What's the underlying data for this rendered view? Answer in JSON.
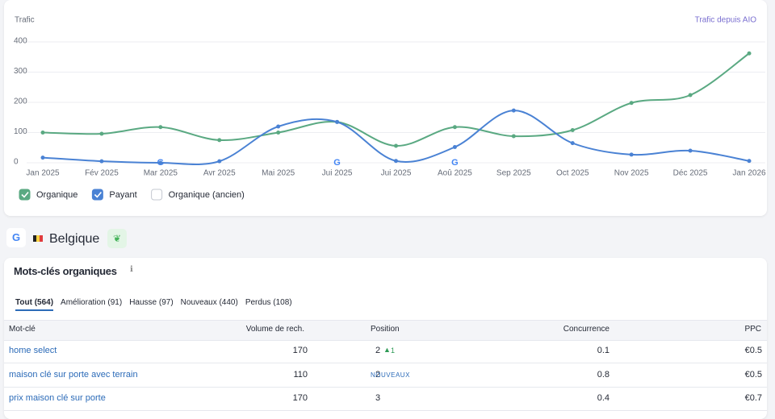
{
  "chart_data": {
    "type": "line",
    "y_label": "Trafic",
    "annotation": "Trafic depuis AIO",
    "categories": [
      "Jan 2025",
      "Fév 2025",
      "Mar 2025",
      "Avr 2025",
      "Mai 2025",
      "Jui 2025",
      "Jui 2025",
      "Aoû 2025",
      "Sep 2025",
      "Oct 2025",
      "Nov 2025",
      "Déc 2025",
      "Jan 2026"
    ],
    "series": [
      {
        "name": "Organique",
        "color": "#5aa982",
        "checked": true,
        "values": [
          100,
          96,
          118,
          75,
          100,
          135,
          56,
          118,
          88,
          108,
          198,
          224,
          362
        ]
      },
      {
        "name": "Payant",
        "color": "#4a82d4",
        "checked": true,
        "values": [
          17,
          5,
          0,
          5,
          120,
          135,
          6,
          52,
          173,
          65,
          27,
          40,
          6
        ]
      },
      {
        "name": "Organique (ancien)",
        "color": "#b0b6c3",
        "checked": false,
        "values": [
          null,
          null,
          null,
          null,
          null,
          null,
          null,
          null,
          null,
          null,
          null,
          null,
          null
        ]
      }
    ],
    "ylim": [
      0,
      400
    ],
    "yticks": [
      0,
      100,
      200,
      300,
      400
    ],
    "grid": true
  },
  "section": {
    "country": "Belgique"
  },
  "keywords": {
    "title": "Mots-clés organiques",
    "tabs": [
      "Tout (564)",
      "Amélioration (91)",
      "Hausse (97)",
      "Nouveaux (440)",
      "Perdus (108)"
    ],
    "columns": [
      "Mot-clé",
      "Volume de rech.",
      "Position",
      "Concurrence",
      "PPC"
    ],
    "rows": [
      {
        "keyword": "home select",
        "volume": 170,
        "position": 2,
        "change": 1,
        "badge": null,
        "competition": 0.1,
        "ppc": "€0.5"
      },
      {
        "keyword": "maison clé sur porte avec terrain",
        "volume": 110,
        "position": 2,
        "change": null,
        "badge": "NOUVEAUX",
        "competition": 0.8,
        "ppc": "€0.5"
      },
      {
        "keyword": "prix maison clé sur porte",
        "volume": 170,
        "position": 3,
        "change": null,
        "badge": null,
        "competition": 0.4,
        "ppc": "€0.7"
      }
    ]
  }
}
